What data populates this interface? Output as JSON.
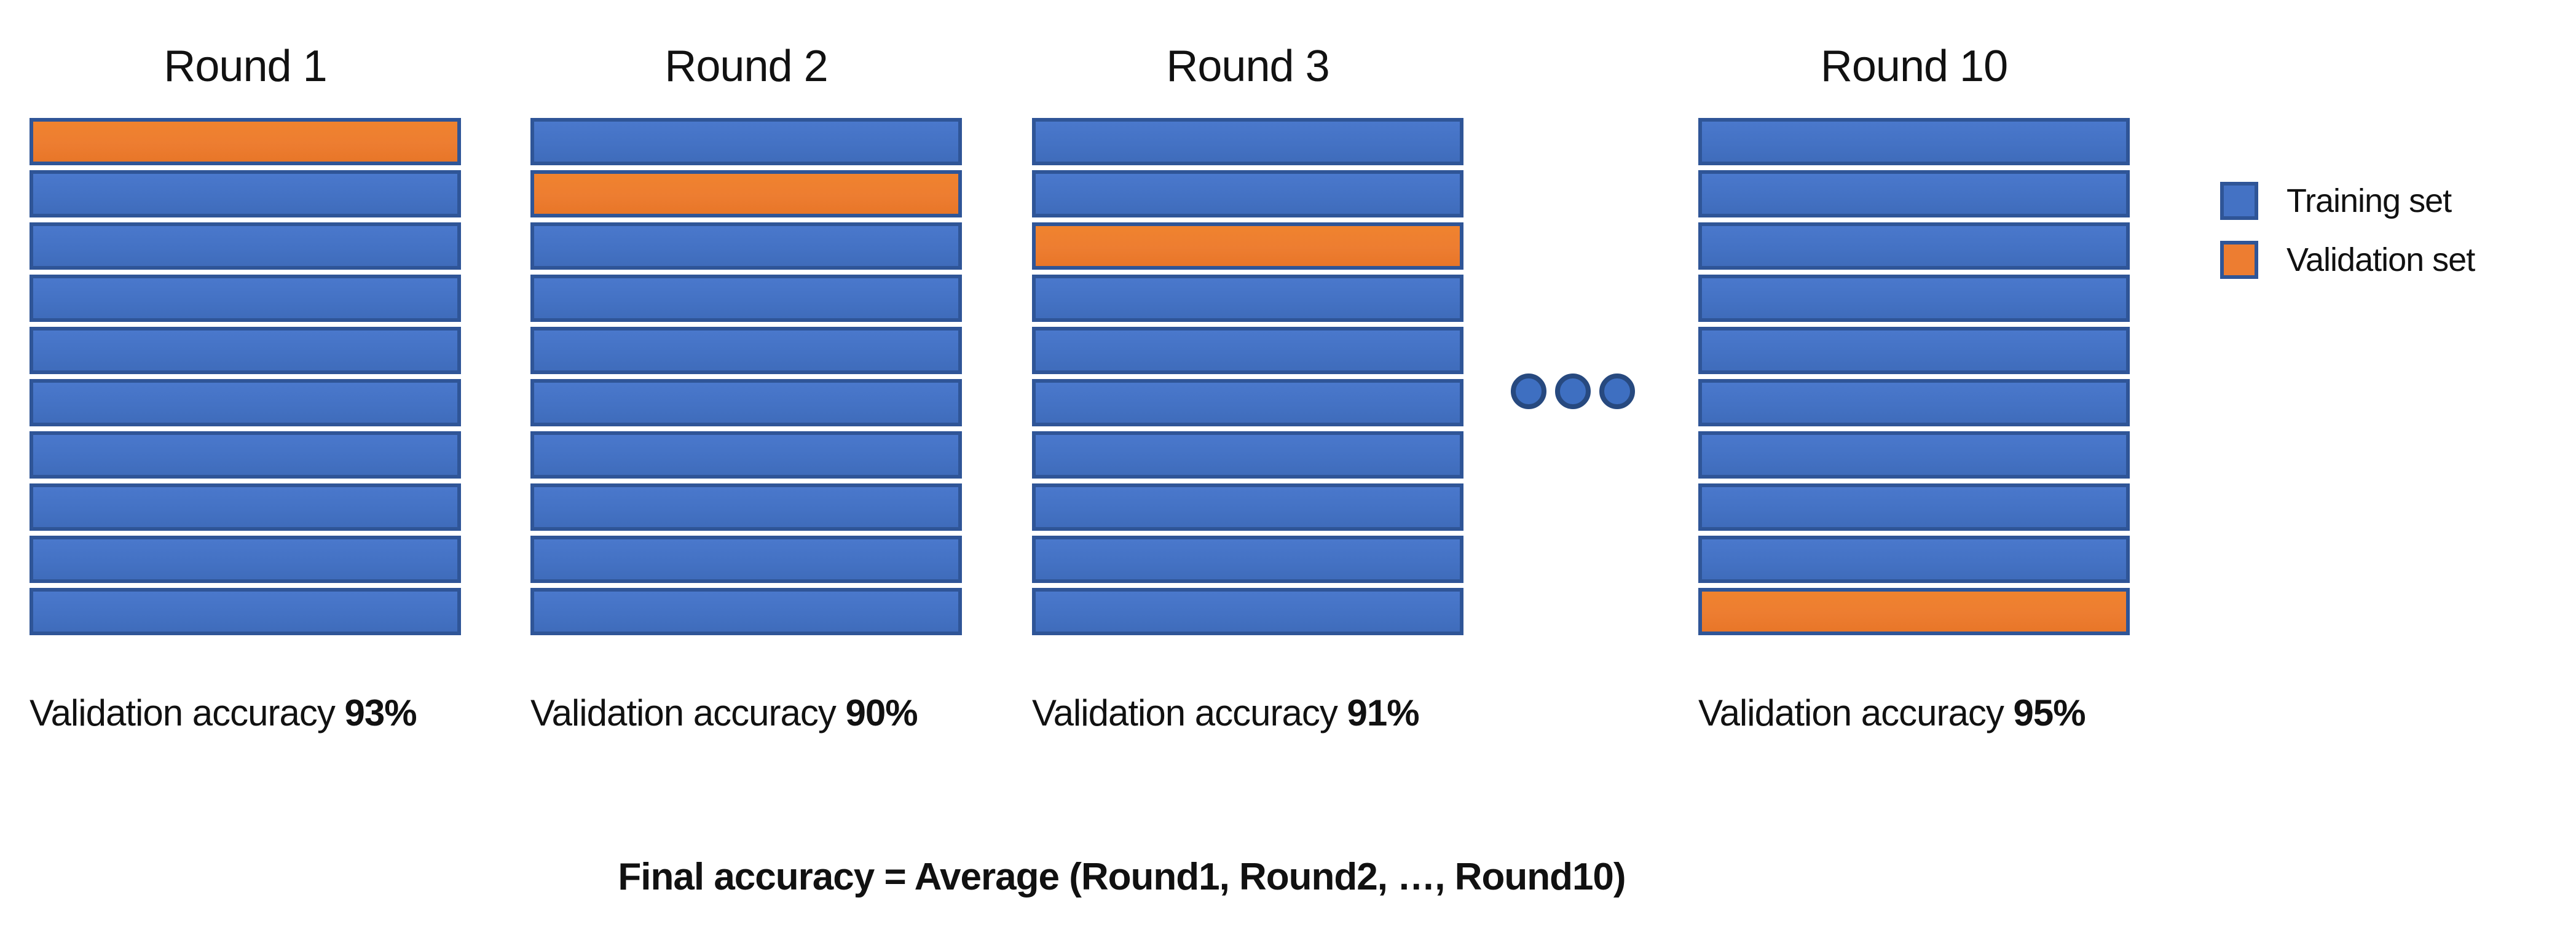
{
  "colors": {
    "background": "#FFFFFF",
    "training_fill": "#4472C4",
    "validation_fill": "#ED7D31",
    "bar_border": "#2F5597",
    "dot_fill": "#3E6FC1",
    "dot_border": "#27497F",
    "text": "#111111"
  },
  "labels": {
    "validation_accuracy_prefix": "Validation accuracy"
  },
  "rounds": [
    {
      "title": "Round 1",
      "fold_count": 10,
      "validation_fold_index": 0,
      "accuracy_value": "93%"
    },
    {
      "title": "Round 2",
      "fold_count": 10,
      "validation_fold_index": 1,
      "accuracy_value": "90%"
    },
    {
      "title": "Round 3",
      "fold_count": 10,
      "validation_fold_index": 2,
      "accuracy_value": "91%"
    },
    {
      "title": "Round 10",
      "fold_count": 10,
      "validation_fold_index": 9,
      "accuracy_value": "95%"
    }
  ],
  "ellipsis": {
    "dot_count": 3
  },
  "legend": {
    "items": [
      {
        "label": "Training set",
        "type": "training"
      },
      {
        "label": "Validation set",
        "type": "validation"
      }
    ]
  },
  "footer": {
    "formula": "Final accuracy = Average (Round1, Round2, …, Round10)"
  }
}
